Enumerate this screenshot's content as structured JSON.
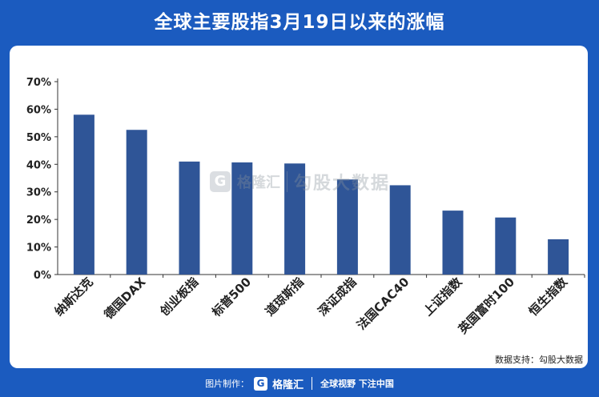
{
  "chart_data": {
    "type": "bar",
    "title": "全球主要股指3月19日以来的涨幅",
    "categories": [
      "纳斯达克",
      "德国DAX",
      "创业板指",
      "标普500",
      "道琼斯指",
      "深证成指",
      "法国CAC40",
      "上证指数",
      "英国富时100",
      "恒生指数"
    ],
    "values": [
      58,
      52.5,
      41,
      40.7,
      40.3,
      34.5,
      32.4,
      23.2,
      20.7,
      12.8
    ],
    "ylim": [
      0,
      70
    ],
    "yticks": [
      "0%",
      "10%",
      "20%",
      "30%",
      "40%",
      "50%",
      "60%",
      "70%"
    ],
    "bar_color": "#2f5597",
    "grid": false,
    "xlabel": "",
    "ylabel": ""
  },
  "watermark": {
    "logo": "G",
    "brand": "格隆汇",
    "text": "勾股大数据"
  },
  "source": "数据支持：勾股大数据",
  "footer": {
    "made_by": "图片制作：",
    "logo": "G",
    "brand": "格隆汇",
    "slogan": "全球视野 下注中国"
  },
  "colors": {
    "background": "#1b5bbf",
    "panel": "#ffffff",
    "bar": "#2f5597"
  }
}
